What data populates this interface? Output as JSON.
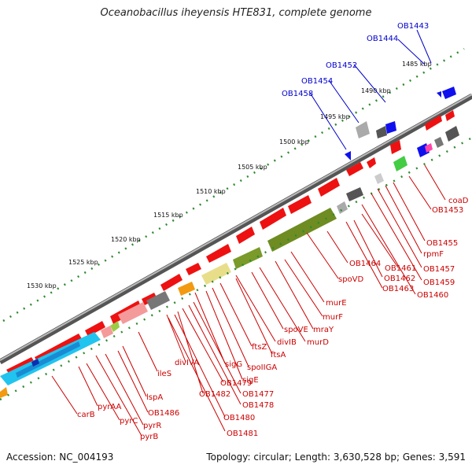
{
  "title": "Oceanobacillus iheyensis HTE831, complete genome",
  "footer": {
    "accession": "Accession: NC_004193",
    "topology": "Topology: circular; Length: 3,630,528 bp; Genes: 3,591"
  },
  "colors": {
    "forward_gene": "#ee0000",
    "reverse_gene": "#0000ee",
    "backbone": "#777777",
    "tick": "#2e8b2e",
    "cds_olive": "#7a9a2a",
    "cds_khaki": "#e8de8a",
    "cds_cyan": "#21c4ee",
    "cds_pink": "#f49a9a",
    "cds_gray": "#777777",
    "cds_orange": "#f29a12",
    "cds_green": "#44cc44"
  },
  "ruler": [
    "1485 kbp",
    "1490 kbp",
    "1495 kbp",
    "1500 kbp",
    "1505 kbp",
    "1510 kbp",
    "1515 kbp",
    "1520 kbp",
    "1525 kbp",
    "1530 kbp"
  ],
  "labels_blue": [
    "OB1443",
    "OB1444",
    "OB1452",
    "OB1454",
    "OB1458"
  ],
  "labels_red": [
    "coaD",
    "OB1453",
    "OB1455",
    "rpmF",
    "OB1457",
    "OB1459",
    "OB1460",
    "OB1461",
    "OB1462",
    "OB1463",
    "OB1464",
    "spoVD",
    "murE",
    "murF",
    "mraY",
    "murD",
    "spoVE",
    "divIB",
    "ftsA",
    "ftsZ",
    "spoIIGA",
    "sigE",
    "sigG",
    "OB1477",
    "OB1478",
    "OB1479",
    "OB1482",
    "divIVA",
    "OB1480",
    "OB1481",
    "ileS",
    "lspA",
    "OB1486",
    "pyrR",
    "pyrB",
    "pyrC",
    "pyrAA",
    "carB"
  ]
}
